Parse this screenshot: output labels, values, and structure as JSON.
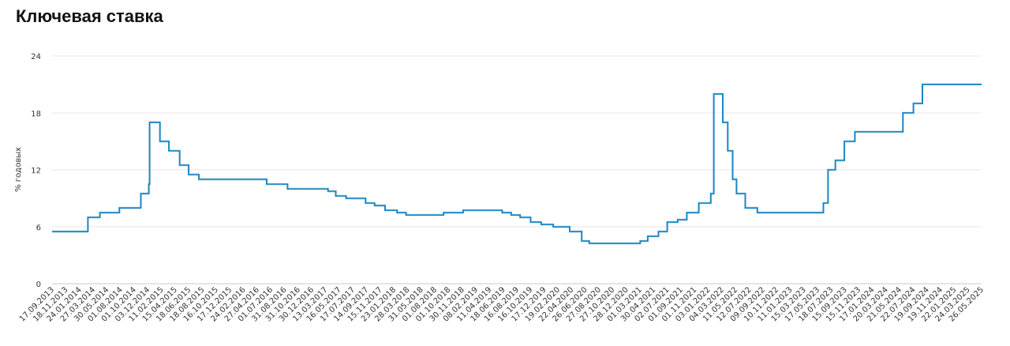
{
  "chart_data": {
    "type": "line",
    "title": "Ключевая ставка",
    "ylabel": "% годовых",
    "xlabel": "",
    "ylim": [
      0,
      24
    ],
    "yticks": [
      0,
      6,
      12,
      18,
      24
    ],
    "grid": true,
    "line_color": "#1a86c2",
    "xlim": [
      "2013-09-17",
      "2025-07-31"
    ],
    "xticks": [
      "17.09.2013",
      "18.11.2013",
      "24.01.2014",
      "27.03.2014",
      "30.05.2014",
      "01.08.2014",
      "01.10.2014",
      "03.12.2014",
      "11.02.2015",
      "15.04.2015",
      "18.06.2015",
      "18.08.2015",
      "16.10.2015",
      "17.12.2015",
      "24.02.2016",
      "27.04.2016",
      "01.07.2016",
      "31.08.2016",
      "31.10.2016",
      "30.12.2016",
      "13.03.2017",
      "16.05.2017",
      "17.07.2017",
      "14.09.2017",
      "15.11.2017",
      "23.01.2018",
      "28.03.2018",
      "31.05.2018",
      "01.08.2018",
      "01.10.2018",
      "30.11.2018",
      "08.02.2019",
      "11.04.2019",
      "18.06.2019",
      "16.08.2019",
      "16.10.2019",
      "17.12.2019",
      "19.02.2020",
      "22.04.2020",
      "26.06.2020",
      "27.08.2020",
      "27.10.2020",
      "28.12.2020",
      "01.03.2021",
      "30.04.2021",
      "02.07.2021",
      "01.09.2021",
      "01.11.2021",
      "03.01.2022",
      "04.03.2022",
      "11.05.2022",
      "12.07.2022",
      "09.09.2022",
      "10.11.2022",
      "11.01.2023",
      "15.03.2023",
      "17.05.2023",
      "18.07.2023",
      "15.09.2023",
      "15.11.2023",
      "17.01.2024",
      "20.03.2024",
      "21.05.2024",
      "22.07.2024",
      "19.09.2024",
      "19.11.2024",
      "22.01.2025",
      "24.03.2025",
      "26.05.2025"
    ],
    "series": [
      {
        "values_step": [
          [
            "2013-09-17",
            5.5
          ],
          [
            "2014-03-03",
            7.0
          ],
          [
            "2014-04-28",
            7.5
          ],
          [
            "2014-07-28",
            8.0
          ],
          [
            "2014-11-05",
            9.5
          ],
          [
            "2014-12-12",
            10.5
          ],
          [
            "2014-12-16",
            17.0
          ],
          [
            "2015-02-02",
            15.0
          ],
          [
            "2015-03-16",
            14.0
          ],
          [
            "2015-05-05",
            12.5
          ],
          [
            "2015-06-16",
            11.5
          ],
          [
            "2015-08-03",
            11.0
          ],
          [
            "2016-06-14",
            10.5
          ],
          [
            "2016-09-19",
            10.0
          ],
          [
            "2017-03-27",
            9.75
          ],
          [
            "2017-05-02",
            9.25
          ],
          [
            "2017-06-19",
            9.0
          ],
          [
            "2017-09-18",
            8.5
          ],
          [
            "2017-10-30",
            8.25
          ],
          [
            "2017-12-18",
            7.75
          ],
          [
            "2018-02-12",
            7.5
          ],
          [
            "2018-03-26",
            7.25
          ],
          [
            "2018-09-17",
            7.5
          ],
          [
            "2018-12-17",
            7.75
          ],
          [
            "2019-06-17",
            7.5
          ],
          [
            "2019-07-29",
            7.25
          ],
          [
            "2019-09-09",
            7.0
          ],
          [
            "2019-10-28",
            6.5
          ],
          [
            "2019-12-16",
            6.25
          ],
          [
            "2020-02-10",
            6.0
          ],
          [
            "2020-04-27",
            5.5
          ],
          [
            "2020-06-22",
            4.5
          ],
          [
            "2020-07-27",
            4.25
          ],
          [
            "2021-03-22",
            4.5
          ],
          [
            "2021-04-26",
            5.0
          ],
          [
            "2021-06-15",
            5.5
          ],
          [
            "2021-07-26",
            6.5
          ],
          [
            "2021-09-13",
            6.75
          ],
          [
            "2021-10-25",
            7.5
          ],
          [
            "2021-12-20",
            8.5
          ],
          [
            "2022-02-14",
            9.5
          ],
          [
            "2022-02-28",
            20.0
          ],
          [
            "2022-04-11",
            17.0
          ],
          [
            "2022-05-04",
            14.0
          ],
          [
            "2022-05-27",
            11.0
          ],
          [
            "2022-06-14",
            9.5
          ],
          [
            "2022-07-25",
            8.0
          ],
          [
            "2022-09-19",
            7.5
          ],
          [
            "2023-07-24",
            8.5
          ],
          [
            "2023-08-15",
            12.0
          ],
          [
            "2023-09-18",
            13.0
          ],
          [
            "2023-10-30",
            15.0
          ],
          [
            "2023-12-18",
            16.0
          ],
          [
            "2024-07-29",
            18.0
          ],
          [
            "2024-09-16",
            19.0
          ],
          [
            "2024-10-28",
            21.0
          ],
          [
            "2025-07-31",
            21.0
          ]
        ]
      }
    ]
  }
}
